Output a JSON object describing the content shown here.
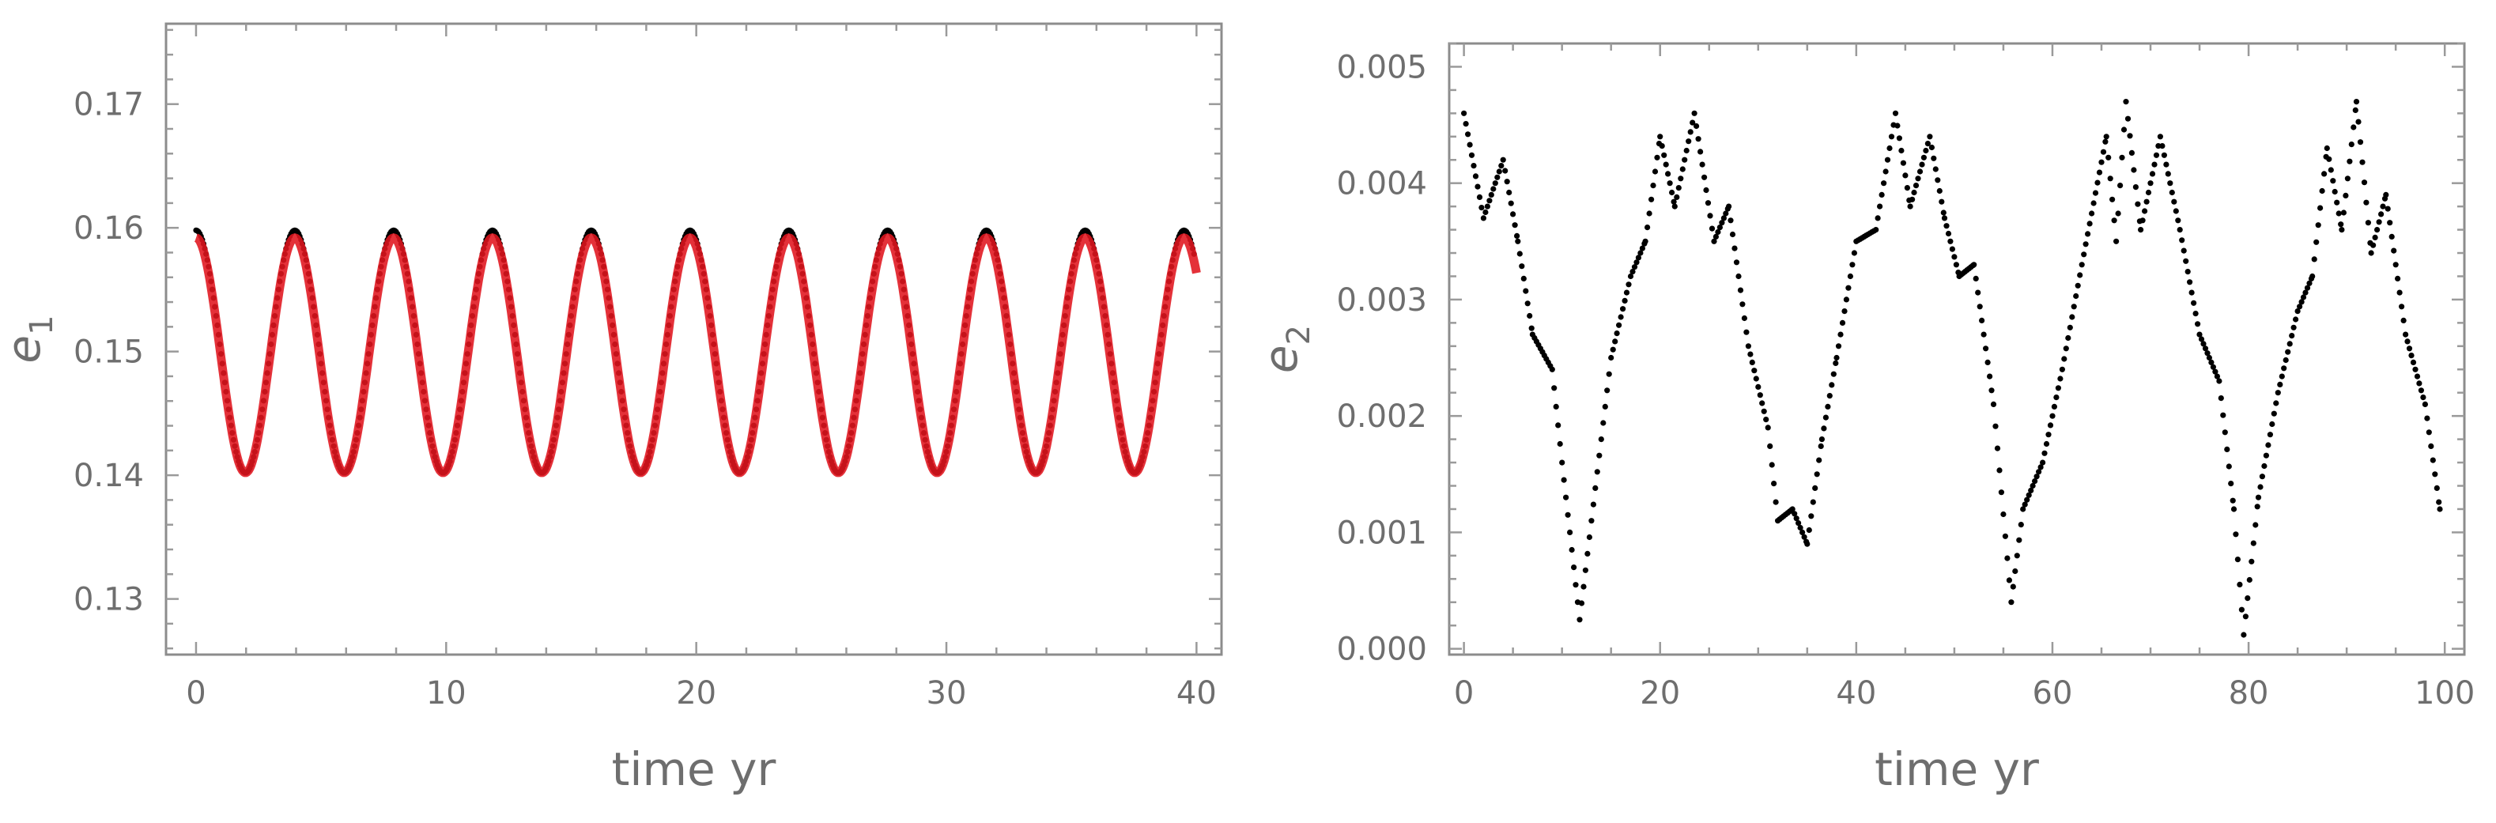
{
  "chart_data": [
    {
      "type": "line",
      "xlabel": "time  yr",
      "ylabel": "e",
      "ylabel_subscript": "1",
      "xlim": [
        -1.2,
        41.0
      ],
      "ylim": [
        0.1255,
        0.1765
      ],
      "xticks": [
        0,
        10,
        20,
        30,
        40
      ],
      "xtick_labels": [
        "0",
        "10",
        "20",
        "30",
        "40"
      ],
      "yticks": [
        0.13,
        0.14,
        0.15,
        0.16,
        0.17
      ],
      "ytick_labels": [
        "0.13",
        "0.14",
        "0.15",
        "0.16",
        "0.17"
      ],
      "grid": false,
      "series": [
        {
          "style": "dots",
          "color": "#000000",
          "model": {
            "kind": "cosine",
            "mean": 0.15,
            "amplitude": 0.0098,
            "period": 3.95,
            "phase": 0
          },
          "x_range": [
            0,
            39.9
          ],
          "sample_step": 0.05
        },
        {
          "style": "line",
          "color": "#e0141e",
          "model": {
            "kind": "cosine",
            "mean": 0.1497,
            "amplitude": 0.0095,
            "period": 3.95,
            "phase": 0
          },
          "x_range": [
            0,
            40.0
          ]
        }
      ]
    },
    {
      "type": "scatter",
      "xlabel": "time  yr",
      "ylabel": "e",
      "ylabel_subscript": "2",
      "xlim": [
        -1.5,
        102.0
      ],
      "ylim": [
        -5e-05,
        0.0052
      ],
      "xticks": [
        0,
        20,
        40,
        60,
        80,
        100
      ],
      "xtick_labels": [
        "0",
        "20",
        "40",
        "60",
        "80",
        "100"
      ],
      "yticks": [
        0.0,
        0.001,
        0.002,
        0.003,
        0.004,
        0.005
      ],
      "ytick_labels": [
        "0.000",
        "0.001",
        "0.002",
        "0.003",
        "0.004",
        "0.005"
      ],
      "grid": false,
      "series": [
        {
          "style": "dots",
          "color": "#000000",
          "sample_step": 0.2,
          "points": [
            [
              0.0,
              0.0046
            ],
            [
              2.0,
              0.0037
            ],
            [
              4.0,
              0.0042
            ],
            [
              5.5,
              0.0035
            ],
            [
              7.0,
              0.0027
            ],
            [
              9.0,
              0.0024
            ],
            [
              10.0,
              0.0016
            ],
            [
              11.8,
              0.00025
            ],
            [
              13.0,
              0.0011
            ],
            [
              15.0,
              0.0025
            ],
            [
              17.0,
              0.0032
            ],
            [
              18.5,
              0.0035
            ],
            [
              20.0,
              0.0044
            ],
            [
              21.5,
              0.0038
            ],
            [
              23.5,
              0.0046
            ],
            [
              25.5,
              0.0035
            ],
            [
              27.0,
              0.0038
            ],
            [
              29.0,
              0.0026
            ],
            [
              31.0,
              0.0019
            ],
            [
              32.0,
              0.0011
            ],
            [
              33.5,
              0.0012
            ],
            [
              35.0,
              0.0009
            ],
            [
              36.5,
              0.0018
            ],
            [
              38.0,
              0.0025
            ],
            [
              40.0,
              0.0035
            ],
            [
              42.0,
              0.0036
            ],
            [
              44.0,
              0.0046
            ],
            [
              45.5,
              0.0038
            ],
            [
              47.5,
              0.0044
            ],
            [
              49.0,
              0.0037
            ],
            [
              50.5,
              0.0032
            ],
            [
              52.0,
              0.0033
            ],
            [
              54.0,
              0.0021
            ],
            [
              55.8,
              0.0004
            ],
            [
              57.0,
              0.0012
            ],
            [
              59.0,
              0.0016
            ],
            [
              61.0,
              0.0024
            ],
            [
              63.0,
              0.0033
            ],
            [
              65.5,
              0.0044
            ],
            [
              66.5,
              0.0035
            ],
            [
              67.5,
              0.0047
            ],
            [
              69.0,
              0.0036
            ],
            [
              71.0,
              0.0044
            ],
            [
              73.0,
              0.0036
            ],
            [
              75.0,
              0.0027
            ],
            [
              77.0,
              0.0023
            ],
            [
              78.5,
              0.0012
            ],
            [
              79.5,
              0.00012
            ],
            [
              81.0,
              0.0013
            ],
            [
              83.0,
              0.0022
            ],
            [
              85.0,
              0.0029
            ],
            [
              86.5,
              0.0032
            ],
            [
              88.0,
              0.0043
            ],
            [
              89.5,
              0.0036
            ],
            [
              91.0,
              0.0047
            ],
            [
              92.5,
              0.0034
            ],
            [
              94.0,
              0.0039
            ],
            [
              96.0,
              0.0027
            ],
            [
              98.0,
              0.0021
            ],
            [
              99.5,
              0.0012
            ]
          ]
        }
      ]
    }
  ]
}
